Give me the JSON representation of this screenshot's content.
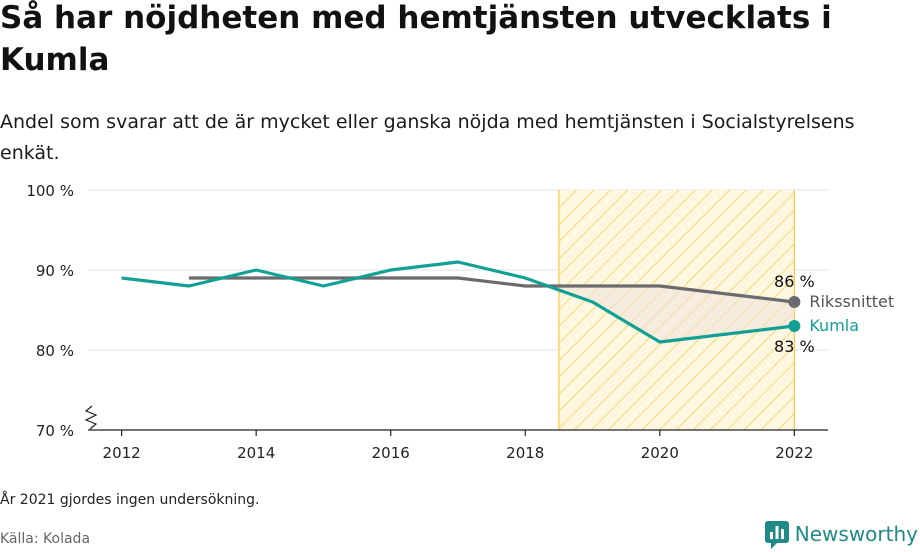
{
  "title": "Så har nöjdheten med hemtjänsten utvecklats i Kumla",
  "subtitle": "Andel som svarar att de är mycket eller ganska nöjda med hemtjänsten i Socialstyrelsens enkät.",
  "note": "År 2021 gjordes ingen undersökning.",
  "source": "Källa: Kolada",
  "brand": {
    "name": "Newsworthy",
    "logo_icon": "bar-chart-speech-bubble-icon",
    "color": "#1f8a86"
  },
  "chart_data": {
    "type": "line",
    "x_ticks": [
      2012,
      2014,
      2016,
      2018,
      2020,
      2022
    ],
    "y_ticks": [
      {
        "value": 100,
        "label": "100 %"
      },
      {
        "value": 90,
        "label": "90 %"
      },
      {
        "value": 80,
        "label": "80 %"
      },
      {
        "value": 70,
        "label": "70 %"
      }
    ],
    "xlim": [
      2011.5,
      2022.5
    ],
    "ylim": [
      70,
      100
    ],
    "y_axis_break": true,
    "grid": true,
    "highlight_range": [
      2018.5,
      2022
    ],
    "highlight_color": "#f7c948",
    "series": [
      {
        "name": "Rikssnittet",
        "color": "#6b6b6f",
        "points": [
          [
            2013,
            89
          ],
          [
            2014,
            89
          ],
          [
            2015,
            89
          ],
          [
            2016,
            89
          ],
          [
            2017,
            89
          ],
          [
            2018,
            88
          ],
          [
            2019,
            88
          ],
          [
            2020,
            88
          ],
          [
            2022,
            86
          ]
        ],
        "end_value_label": "86 %"
      },
      {
        "name": "Kumla",
        "color": "#12a095",
        "points": [
          [
            2012,
            89
          ],
          [
            2013,
            88
          ],
          [
            2014,
            90
          ],
          [
            2015,
            88
          ],
          [
            2016,
            90
          ],
          [
            2017,
            91
          ],
          [
            2018,
            89
          ],
          [
            2019,
            86
          ],
          [
            2020,
            81
          ],
          [
            2022,
            83
          ]
        ],
        "end_value_label": "83 %"
      }
    ]
  }
}
